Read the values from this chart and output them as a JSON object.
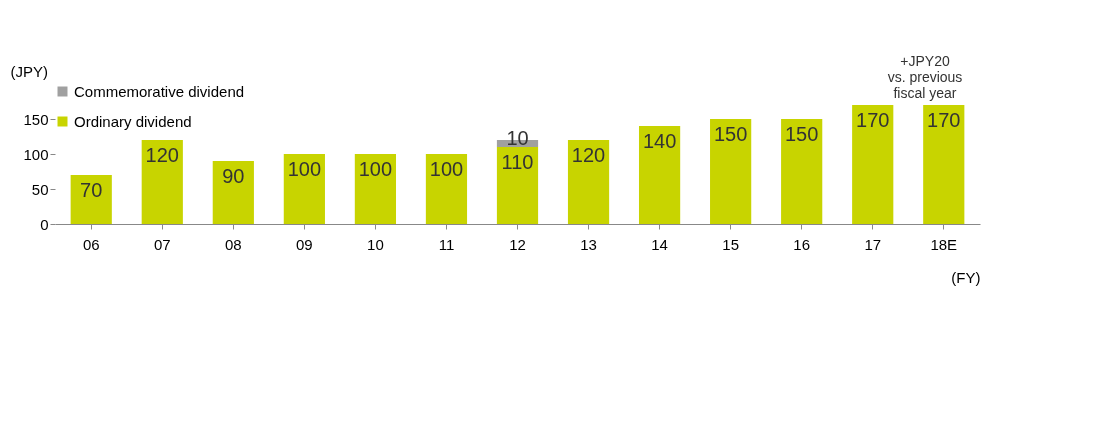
{
  "chart_data": {
    "type": "bar",
    "stacked": true,
    "ylabel": "(JPY)",
    "xlabel": "(FY)",
    "categories": [
      "06",
      "07",
      "08",
      "09",
      "10",
      "11",
      "12",
      "13",
      "14",
      "15",
      "16",
      "17",
      "18E"
    ],
    "series": [
      {
        "name": "Ordinary dividend",
        "color": "#c8d400",
        "values": [
          70,
          120,
          90,
          100,
          100,
          100,
          110,
          120,
          140,
          150,
          150,
          170,
          170
        ]
      },
      {
        "name": "Commemorative dividend",
        "color": "#a0a0a0",
        "values": [
          null,
          null,
          null,
          null,
          null,
          null,
          10,
          null,
          null,
          null,
          null,
          null,
          null
        ]
      }
    ],
    "ylim": [
      0,
      200
    ],
    "yticks": [
      0,
      50,
      100,
      150
    ],
    "grid": false,
    "legend": "top left",
    "data_labels": true,
    "annotations": [
      "+JPY20\nvs. previous\nfiscal year"
    ]
  }
}
